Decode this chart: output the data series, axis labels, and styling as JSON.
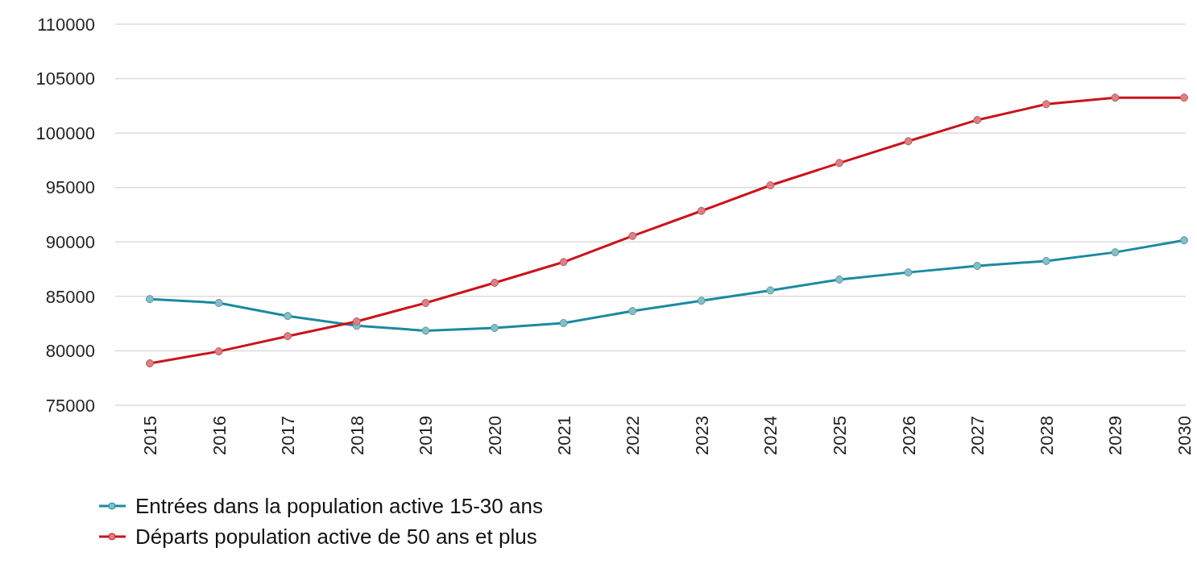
{
  "chart_data": {
    "type": "line",
    "categories": [
      "2015",
      "2016",
      "2017",
      "2018",
      "2019",
      "2020",
      "2021",
      "2022",
      "2023",
      "2024",
      "2025",
      "2026",
      "2027",
      "2028",
      "2029",
      "2030"
    ],
    "series": [
      {
        "name": "Entrées dans la population active 15-30 ans",
        "color": "#1b8aa0",
        "values": [
          84750,
          84400,
          83200,
          82300,
          81850,
          82100,
          82550,
          83650,
          84600,
          85550,
          86550,
          87200,
          87800,
          88250,
          89050,
          90150
        ]
      },
      {
        "name": "Départs population active de 50 ans et plus",
        "color": "#c8141e",
        "values": [
          78850,
          79950,
          81350,
          82700,
          84400,
          86250,
          88150,
          90550,
          92850,
          95200,
          97250,
          99250,
          101200,
          102650,
          103250,
          103250
        ]
      }
    ],
    "ylim": [
      75000,
      110000
    ],
    "yticks": [
      75000,
      80000,
      85000,
      90000,
      95000,
      100000,
      105000,
      110000
    ],
    "grid": "y",
    "legend": "bottom left",
    "marker": "circle"
  }
}
